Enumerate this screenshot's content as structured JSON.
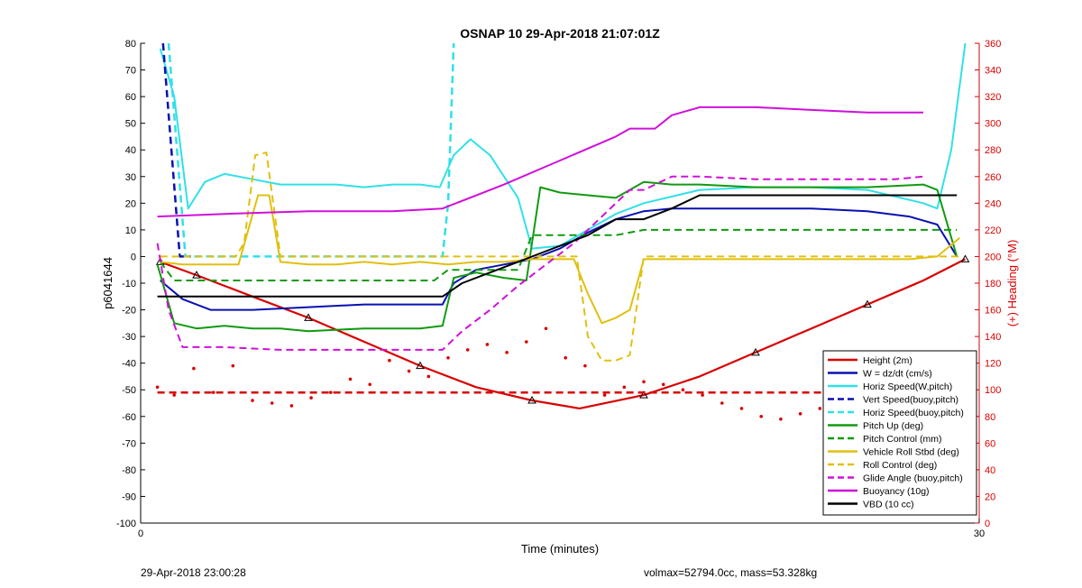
{
  "chart_data": {
    "type": "line",
    "title": "OSNAP 10 29-Apr-2018 21:07:01Z",
    "xlabel": "Time (minutes)",
    "ylabel": "p6041644",
    "y2label": "(+) Heading (°M)",
    "xlim": [
      0,
      30
    ],
    "ylim": [
      -100,
      80
    ],
    "y2lim": [
      0,
      360
    ],
    "xticks": [
      0,
      30
    ],
    "yticks": [
      80,
      70,
      60,
      50,
      40,
      30,
      20,
      10,
      0,
      -10,
      -20,
      -30,
      -40,
      -50,
      -60,
      -70,
      -80,
      -90,
      -100
    ],
    "y2ticks": [
      360,
      340,
      320,
      300,
      280,
      260,
      240,
      220,
      200,
      180,
      160,
      140,
      120,
      100,
      80,
      60,
      40,
      20,
      0
    ],
    "grid": false,
    "legend_position": "bottom-right",
    "colors": {
      "red": "#d90000",
      "blue": "#0a10b0",
      "cyan": "#30e0e8",
      "green": "#109a10",
      "yellow": "#e0c010",
      "magenta": "#d010d8",
      "black": "#000000"
    },
    "series": [
      {
        "name": "Height (2m)",
        "color": "red",
        "dash": "solid",
        "width": 2.2,
        "axis": "left",
        "marker": "triangle",
        "x": [
          0.7,
          2,
          4,
          6,
          8,
          10,
          12,
          14,
          15.7,
          18,
          20,
          22,
          24,
          26,
          28,
          29.5
        ],
        "y": [
          -2,
          -7,
          -15,
          -23,
          -32,
          -41,
          -49,
          -54,
          -57,
          -52,
          -45,
          -36,
          -27,
          -18,
          -9,
          -1
        ]
      },
      {
        "name": "W = dz/dt (cm/s)",
        "color": "blue",
        "dash": "solid",
        "width": 2,
        "axis": "left",
        "x": [
          0.7,
          1.5,
          2.5,
          4,
          6,
          8,
          10,
          10.8,
          11.2,
          12,
          13,
          14,
          15,
          16,
          17,
          18,
          19,
          20,
          22,
          24,
          26,
          27.5,
          28.5,
          29.2
        ],
        "y": [
          -9,
          -16,
          -20,
          -20,
          -19,
          -18,
          -18,
          -18,
          -10,
          -5,
          -3,
          -1,
          3,
          9,
          14,
          17,
          18,
          18,
          18,
          18,
          17,
          15,
          12,
          0
        ]
      },
      {
        "name": "Horiz Speed(W,pitch)",
        "color": "cyan",
        "dash": "solid",
        "width": 2,
        "axis": "left",
        "x": [
          0.7,
          1.2,
          1.7,
          2.3,
          3,
          4,
          5,
          6,
          7,
          8,
          9,
          10,
          10.7,
          11.2,
          11.8,
          12.5,
          13.5,
          14,
          15,
          16,
          17,
          18,
          20,
          22,
          24,
          26,
          28,
          28.5,
          29,
          29.5
        ],
        "y": [
          78,
          60,
          18,
          28,
          31,
          29,
          27,
          27,
          27,
          26,
          27,
          27,
          26,
          38,
          44,
          38,
          22,
          3,
          4,
          10,
          16,
          20,
          25,
          26,
          26,
          25,
          20,
          18,
          40,
          80
        ]
      },
      {
        "name": "Vert Speed(buoy,pitch)",
        "color": "blue",
        "dash": "dashed",
        "width": 2.5,
        "axis": "left",
        "x": [
          0.8,
          1.4,
          1.8
        ],
        "y": [
          80,
          0,
          0
        ]
      },
      {
        "name": "Horiz Speed(buoy,pitch)",
        "color": "cyan",
        "dash": "dashed",
        "width": 2.5,
        "axis": "left",
        "x": [
          1.0,
          1.3,
          1.6,
          5,
          10.8,
          11.0,
          11.2
        ],
        "y": [
          80,
          40,
          0,
          0,
          0,
          20,
          80
        ]
      },
      {
        "name": "Pitch Up (deg)",
        "color": "green",
        "dash": "solid",
        "width": 2,
        "axis": "left",
        "x": [
          0.6,
          1.2,
          2,
          3,
          4,
          5,
          6,
          8,
          10,
          10.8,
          11.2,
          12,
          13,
          13.8,
          14.3,
          15,
          16,
          17,
          18,
          19,
          20,
          22,
          24,
          26,
          28,
          28.5,
          29.2
        ],
        "y": [
          -3,
          -25,
          -27,
          -26,
          -27,
          -27,
          -28,
          -27,
          -27,
          -26,
          -8,
          -6,
          -8,
          -9,
          26,
          24,
          23,
          22,
          28,
          27,
          27,
          26,
          26,
          26,
          27,
          25,
          0
        ]
      },
      {
        "name": "Pitch Control (mm)",
        "color": "green",
        "dash": "dashed",
        "width": 2,
        "axis": "left",
        "x": [
          0.7,
          1.2,
          5,
          10.5,
          11,
          13.5,
          14,
          15,
          17,
          18,
          20,
          24,
          28,
          29.2
        ],
        "y": [
          -2,
          -9,
          -9,
          -9,
          -5,
          -5,
          8,
          8,
          8,
          10,
          10,
          10,
          10,
          10
        ]
      },
      {
        "name": "Vehicle Roll Stbd (deg)",
        "color": "yellow",
        "dash": "solid",
        "width": 2,
        "axis": "left",
        "x": [
          0.7,
          1.5,
          2.5,
          3.5,
          4.2,
          4.6,
          5,
          6,
          7,
          8,
          9,
          10,
          11,
          12,
          13,
          14,
          15,
          15.5,
          16,
          16.5,
          17,
          17.5,
          18,
          19,
          20,
          22,
          24,
          26,
          27.5,
          28.5,
          29.3
        ],
        "y": [
          -2,
          -3,
          -3,
          -3,
          23,
          23,
          -2,
          -3,
          -3,
          -2,
          -3,
          -2,
          -3,
          -2,
          -2,
          -1,
          -1,
          -1,
          -14,
          -25,
          -23,
          -20,
          -1,
          -1,
          -1,
          -1,
          -1,
          -1,
          -1,
          0,
          7
        ]
      },
      {
        "name": "Roll Control (deg)",
        "color": "yellow",
        "dash": "dashed",
        "width": 2,
        "axis": "left",
        "x": [
          0.7,
          2,
          3.4,
          3.7,
          4.1,
          4.5,
          5,
          6,
          8,
          10,
          12,
          14,
          15,
          15.6,
          16,
          16.5,
          17,
          17.5,
          18,
          20,
          24,
          28,
          29.3
        ],
        "y": [
          0,
          0,
          0,
          5,
          38,
          39,
          0,
          0,
          0,
          0,
          0,
          0,
          0,
          0,
          -30,
          -39,
          -39,
          -37,
          0,
          0,
          0,
          0,
          0
        ]
      },
      {
        "name": "Glide Angle (buoy,pitch)",
        "color": "magenta",
        "dash": "dashed",
        "width": 2,
        "axis": "left",
        "x": [
          0.6,
          1.0,
          1.5,
          3,
          5,
          8,
          10,
          10.8,
          11.5,
          12.5,
          13.5,
          14.5,
          15.5,
          16.5,
          17.5,
          18,
          19,
          20,
          22,
          24,
          26,
          27,
          28
        ],
        "y": [
          5,
          -20,
          -34,
          -34,
          -35,
          -35,
          -35,
          -35,
          -28,
          -20,
          -11,
          -3,
          5,
          15,
          25,
          25,
          30,
          30,
          29,
          29,
          29,
          29,
          30
        ]
      },
      {
        "name": "Buoyancy (10g)",
        "color": "magenta",
        "dash": "solid",
        "width": 2,
        "axis": "left",
        "x": [
          0.6,
          3,
          6,
          9,
          10.8,
          13,
          15,
          17,
          17.5,
          18.4,
          19,
          20,
          22,
          24,
          26,
          28
        ],
        "y": [
          15,
          16,
          17,
          17,
          18,
          27,
          36,
          45,
          48,
          48,
          53,
          56,
          56,
          55,
          54,
          54
        ]
      },
      {
        "name": "VBD (10 cc)",
        "color": "black",
        "dash": "solid",
        "width": 2,
        "axis": "left",
        "x": [
          0.6,
          10.8,
          11.5,
          12.5,
          13.5,
          14.5,
          15.5,
          16,
          17,
          18,
          19,
          20,
          22,
          24,
          26,
          28,
          29.2
        ],
        "y": [
          -15,
          -15,
          -10,
          -6,
          -2,
          2,
          6,
          8,
          14,
          14,
          18,
          23,
          23,
          23,
          23,
          23,
          23
        ]
      },
      {
        "name": "",
        "color": "red",
        "dash": "dashed",
        "width": 2.5,
        "axis": "right",
        "x": [
          0.6,
          29.2
        ],
        "y": [
          98,
          98
        ]
      },
      {
        "name": "",
        "color": "red",
        "dash": "dots",
        "axis": "right",
        "x": [
          0.6,
          1.2,
          1.9,
          2.6,
          3.3,
          4.0,
          4.7,
          5.4,
          6.1,
          6.8,
          7.5,
          8.2,
          8.9,
          9.6,
          10.3,
          11.0,
          11.7,
          12.4,
          13.1,
          13.8,
          14.5,
          15.2,
          15.9,
          16.6,
          17.3,
          18.0,
          18.7,
          19.4,
          20.1,
          20.8,
          21.5,
          22.2,
          22.9,
          23.6,
          24.3,
          25.0,
          25.7,
          26.4,
          27.1,
          27.8,
          28.5
        ],
        "y": [
          102,
          96,
          116,
          98,
          118,
          92,
          90,
          88,
          94,
          98,
          108,
          104,
          122,
          114,
          110,
          124,
          130,
          134,
          128,
          136,
          146,
          124,
          118,
          96,
          102,
          106,
          104,
          100,
          96,
          90,
          86,
          80,
          78,
          82,
          86,
          88,
          90,
          84,
          78,
          70,
          66
        ]
      }
    ]
  },
  "footer": {
    "left": "29-Apr-2018 23:00:28",
    "right": "volmax=52794.0cc, mass=53.328kg"
  }
}
